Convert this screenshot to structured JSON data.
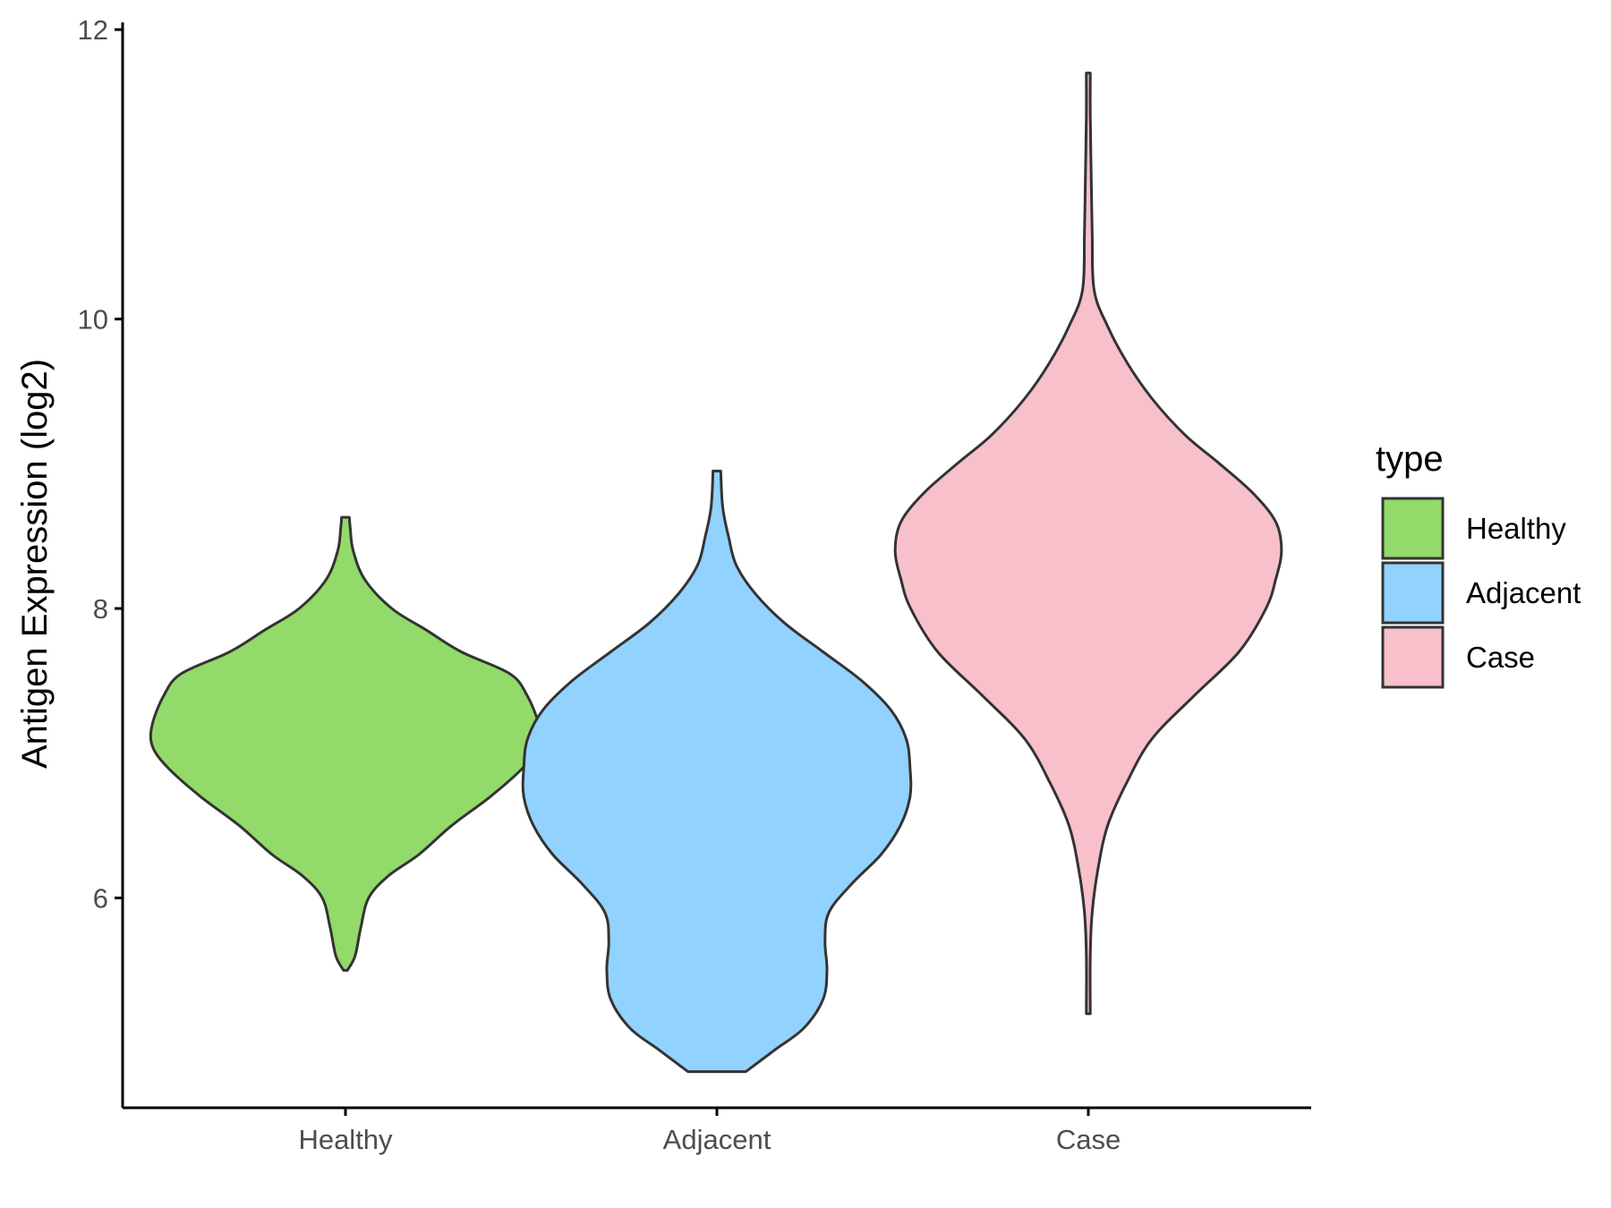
{
  "chart_data": {
    "type": "violin",
    "title": "",
    "xlabel": "",
    "ylabel": "Antigen Expression (log2)",
    "ylim": [
      4.55,
      12.05
    ],
    "yticks": [
      6,
      8,
      10,
      12
    ],
    "categories": [
      "Healthy",
      "Adjacent",
      "Case"
    ],
    "legend": {
      "title": "type",
      "position": "right",
      "entries": [
        "Healthy",
        "Adjacent",
        "Case"
      ]
    },
    "colors": {
      "Healthy": "#92da69",
      "Adjacent": "#92d2fe",
      "Case": "#f7c0cb",
      "outline": "#333333"
    },
    "grid": false,
    "series": [
      {
        "name": "Healthy",
        "min": 5.5,
        "max": 8.63,
        "density": [
          [
            5.5,
            0.01
          ],
          [
            5.6,
            0.05
          ],
          [
            5.8,
            0.08
          ],
          [
            6.0,
            0.12
          ],
          [
            6.15,
            0.22
          ],
          [
            6.3,
            0.38
          ],
          [
            6.5,
            0.55
          ],
          [
            6.7,
            0.75
          ],
          [
            6.9,
            0.92
          ],
          [
            7.05,
            1.0
          ],
          [
            7.2,
            1.0
          ],
          [
            7.4,
            0.94
          ],
          [
            7.55,
            0.85
          ],
          [
            7.7,
            0.6
          ],
          [
            7.85,
            0.42
          ],
          [
            8.0,
            0.24
          ],
          [
            8.2,
            0.1
          ],
          [
            8.4,
            0.04
          ],
          [
            8.55,
            0.025
          ],
          [
            8.63,
            0.02
          ]
        ]
      },
      {
        "name": "Adjacent",
        "min": 4.8,
        "max": 8.95,
        "density": [
          [
            4.8,
            0.15
          ],
          [
            4.95,
            0.3
          ],
          [
            5.1,
            0.45
          ],
          [
            5.3,
            0.55
          ],
          [
            5.5,
            0.57
          ],
          [
            5.7,
            0.56
          ],
          [
            5.9,
            0.58
          ],
          [
            6.1,
            0.7
          ],
          [
            6.3,
            0.85
          ],
          [
            6.5,
            0.95
          ],
          [
            6.7,
            1.0
          ],
          [
            6.9,
            1.0
          ],
          [
            7.1,
            0.98
          ],
          [
            7.3,
            0.9
          ],
          [
            7.5,
            0.75
          ],
          [
            7.7,
            0.55
          ],
          [
            7.9,
            0.35
          ],
          [
            8.1,
            0.2
          ],
          [
            8.3,
            0.1
          ],
          [
            8.5,
            0.06
          ],
          [
            8.7,
            0.03
          ],
          [
            8.95,
            0.02
          ]
        ]
      },
      {
        "name": "Case",
        "min": 5.2,
        "max": 11.7,
        "density": [
          [
            5.2,
            0.01
          ],
          [
            5.6,
            0.01
          ],
          [
            5.9,
            0.02
          ],
          [
            6.2,
            0.05
          ],
          [
            6.5,
            0.1
          ],
          [
            6.8,
            0.2
          ],
          [
            7.1,
            0.33
          ],
          [
            7.4,
            0.55
          ],
          [
            7.7,
            0.78
          ],
          [
            8.0,
            0.92
          ],
          [
            8.2,
            0.97
          ],
          [
            8.4,
            1.0
          ],
          [
            8.6,
            0.97
          ],
          [
            8.8,
            0.85
          ],
          [
            9.0,
            0.68
          ],
          [
            9.2,
            0.5
          ],
          [
            9.45,
            0.33
          ],
          [
            9.7,
            0.2
          ],
          [
            9.95,
            0.1
          ],
          [
            10.2,
            0.03
          ],
          [
            10.6,
            0.02
          ],
          [
            11.0,
            0.015
          ],
          [
            11.4,
            0.01
          ],
          [
            11.7,
            0.01
          ]
        ]
      }
    ]
  }
}
